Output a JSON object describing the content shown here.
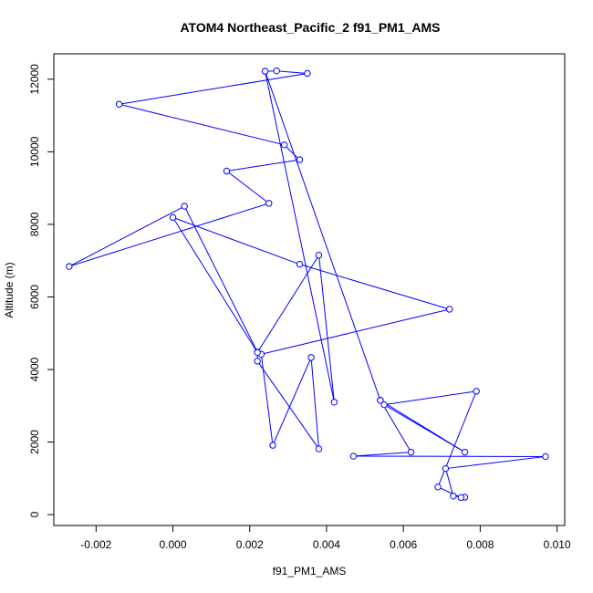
{
  "chart_data": {
    "type": "line",
    "title": "ATOM4 Northeast_Pacific_2 f91_PM1_AMS",
    "xlabel": "f91_PM1_AMS",
    "ylabel": "Altitude (m)",
    "xlim": [
      -0.0031,
      0.0102
    ],
    "ylim": [
      -300,
      12700
    ],
    "xticks": [
      -0.002,
      0.0,
      0.002,
      0.004,
      0.006,
      0.008,
      0.01
    ],
    "xtick_labels": [
      "-0.002",
      "0.000",
      "0.002",
      "0.004",
      "0.006",
      "0.008",
      "0.010"
    ],
    "yticks": [
      0,
      2000,
      4000,
      6000,
      8000,
      10000,
      12000
    ],
    "ytick_labels": [
      "0",
      "2000",
      "4000",
      "6000",
      "8000",
      "10000",
      "12000"
    ],
    "series_color": "#0000ff",
    "marker": "open-circle",
    "points": [
      {
        "x": 0.0024,
        "y": 12220
      },
      {
        "x": 0.0027,
        "y": 12230
      },
      {
        "x": 0.0035,
        "y": 12160
      },
      {
        "x": -0.0014,
        "y": 11310
      },
      {
        "x": 0.0029,
        "y": 10190
      },
      {
        "x": 0.0033,
        "y": 9780
      },
      {
        "x": 0.0014,
        "y": 9470
      },
      {
        "x": 0.0025,
        "y": 8580
      },
      {
        "x": -0.0027,
        "y": 6840
      },
      {
        "x": 0.0003,
        "y": 8500
      },
      {
        "x": 0.0022,
        "y": 4480
      },
      {
        "x": 0.0022,
        "y": 4230
      },
      {
        "x": 0.0038,
        "y": 1810
      },
      {
        "x": 0.0036,
        "y": 4330
      },
      {
        "x": 0.0026,
        "y": 1910
      },
      {
        "x": 0.0023,
        "y": 4420
      },
      {
        "x": 0.0072,
        "y": 5660
      },
      {
        "x": 0.0033,
        "y": 6900
      },
      {
        "x": 0.0,
        "y": 8190
      },
      {
        "x": 0.0022,
        "y": 4470
      },
      {
        "x": 0.0038,
        "y": 7150
      },
      {
        "x": 0.0042,
        "y": 3100
      },
      {
        "x": 0.0024,
        "y": 12220
      },
      {
        "x": 0.0054,
        "y": 3150
      },
      {
        "x": 0.0062,
        "y": 1720
      },
      {
        "x": 0.0047,
        "y": 1610
      },
      {
        "x": 0.0097,
        "y": 1600
      },
      {
        "x": 0.0071,
        "y": 1270
      },
      {
        "x": 0.0073,
        "y": 510
      },
      {
        "x": 0.0076,
        "y": 480
      },
      {
        "x": 0.0075,
        "y": 470
      },
      {
        "x": 0.0069,
        "y": 760
      },
      {
        "x": 0.0079,
        "y": 3400
      },
      {
        "x": 0.0055,
        "y": 3030
      },
      {
        "x": 0.0076,
        "y": 1720
      },
      {
        "x": 0.0054,
        "y": 3150
      }
    ],
    "path_order_note": ""
  }
}
